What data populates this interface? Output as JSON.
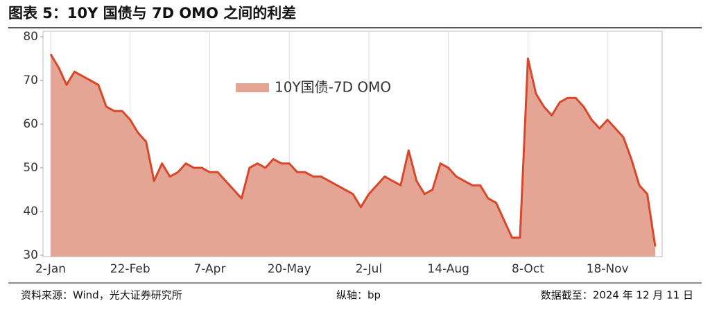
{
  "header": {
    "title": "图表 5：10Y 国债与 7D OMO 之间的利差"
  },
  "chart_data": {
    "type": "area",
    "categories": [
      "2-Jan",
      null,
      null,
      null,
      null,
      null,
      null,
      null,
      null,
      null,
      "22-Feb",
      null,
      null,
      null,
      null,
      null,
      null,
      null,
      null,
      null,
      "7-Apr",
      null,
      null,
      null,
      null,
      null,
      null,
      null,
      null,
      null,
      "20-May",
      null,
      null,
      null,
      null,
      null,
      null,
      null,
      null,
      null,
      "2-Jul",
      null,
      null,
      null,
      null,
      null,
      null,
      null,
      null,
      null,
      "14-Aug",
      null,
      null,
      null,
      null,
      null,
      null,
      null,
      null,
      null,
      "8-Oct",
      null,
      null,
      null,
      null,
      null,
      null,
      null,
      null,
      null,
      "18-Nov",
      null,
      null,
      null,
      null,
      null,
      null
    ],
    "series": [
      {
        "name": "10Y国债-7D OMO",
        "color": "#d9472b",
        "fill": "#e4a594",
        "values": [
          76,
          73,
          69,
          72,
          71,
          70,
          69,
          64,
          63,
          63,
          61,
          58,
          56,
          47,
          51,
          48,
          49,
          51,
          50,
          50,
          49,
          49,
          47,
          45,
          43,
          50,
          51,
          50,
          52,
          51,
          51,
          49,
          49,
          48,
          48,
          47,
          46,
          45,
          44,
          41,
          44,
          46,
          48,
          47,
          46,
          54,
          47,
          44,
          45,
          51,
          50,
          48,
          47,
          46,
          46,
          43,
          42,
          38,
          34,
          34,
          75,
          67,
          64,
          62,
          65,
          66,
          66,
          64,
          61,
          59,
          61,
          59,
          57,
          52,
          46,
          44,
          32
        ]
      }
    ],
    "ylim": [
      30,
      80
    ],
    "yticks": [
      30,
      40,
      50,
      60,
      70,
      80
    ],
    "grid": "x",
    "legend": "top"
  },
  "footer": {
    "source": "资料来源：Wind，光大证券研究所",
    "axis_note": "纵轴：bp",
    "date_note": "数据截至：2024 年 12 月 11 日"
  }
}
